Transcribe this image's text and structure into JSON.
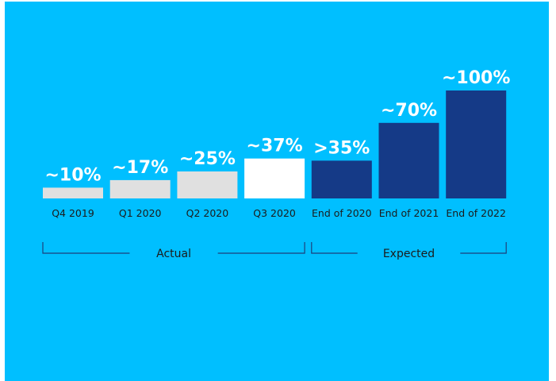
{
  "colors": {
    "background": "#00BFFF",
    "actual_past": "#E0E0E0",
    "actual_latest": "#FFFFFF",
    "expected": "#153A87"
  },
  "chart_data": {
    "type": "bar",
    "title": "",
    "xlabel": "",
    "ylabel": "",
    "ylim": [
      0,
      100
    ],
    "grid": false,
    "categories": [
      "Q4 2019",
      "Q1 2020",
      "Q2 2020",
      "Q3 2020",
      "End of 2020",
      "End of 2021",
      "End of 2022"
    ],
    "values": [
      10,
      17,
      25,
      37,
      35,
      70,
      100
    ],
    "data_labels": [
      "~10%",
      "~17%",
      "~25%",
      "~37%",
      ">35%",
      "~70%",
      "~100%"
    ],
    "bar_colors": [
      "#E0E0E0",
      "#E0E0E0",
      "#E0E0E0",
      "#FFFFFF",
      "#153A87",
      "#153A87",
      "#153A87"
    ],
    "groups": [
      {
        "label": "Actual",
        "first": 0,
        "last": 3
      },
      {
        "label": "Expected",
        "first": 4,
        "last": 6
      }
    ]
  }
}
